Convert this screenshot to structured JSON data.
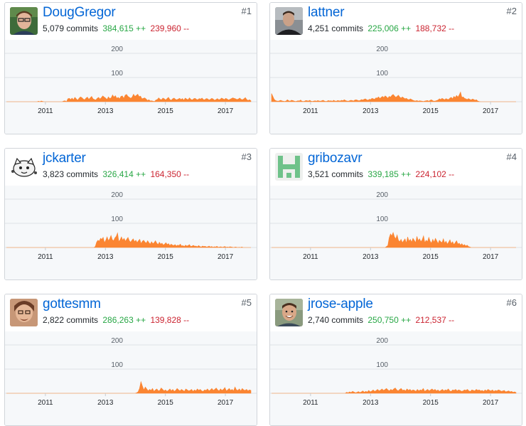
{
  "colors": {
    "area": "#fb8532",
    "link": "#0366d6",
    "additions": "#28a745",
    "deletions": "#cb2431",
    "grid": "#dfe2e5",
    "chart_bg": "#f6f8fa"
  },
  "contributors": [
    {
      "rank": "#1",
      "login": "DougGregor",
      "commits": "5,079 commits",
      "additions": "384,615 ++",
      "deletions": "239,960 --",
      "avatar": "portrait-glasses"
    },
    {
      "rank": "#2",
      "login": "lattner",
      "commits": "4,251 commits",
      "additions": "225,006 ++",
      "deletions": "188,732 --",
      "avatar": "portrait-dark"
    },
    {
      "rank": "#3",
      "login": "jckarter",
      "commits": "3,823 commits",
      "additions": "326,414 ++",
      "deletions": "164,350 --",
      "avatar": "cartoon-cat"
    },
    {
      "rank": "#4",
      "login": "gribozavr",
      "commits": "3,521 commits",
      "additions": "339,185 ++",
      "deletions": "224,102 --",
      "avatar": "identicon-green"
    },
    {
      "rank": "#5",
      "login": "gottesmm",
      "commits": "2,822 commits",
      "additions": "286,263 ++",
      "deletions": "139,828 --",
      "avatar": "portrait-warm"
    },
    {
      "rank": "#6",
      "login": "jrose-apple",
      "commits": "2,740 commits",
      "additions": "250,750 ++",
      "deletions": "212,537 --",
      "avatar": "portrait-smile"
    }
  ],
  "chart_data": [
    {
      "type": "area",
      "series": [
        {
          "values": [
            0,
            0,
            0,
            0,
            0,
            0,
            0,
            0,
            0,
            0,
            0,
            0,
            0,
            0,
            0,
            0,
            0,
            0,
            0,
            0,
            0,
            0,
            0,
            2,
            0,
            3,
            1,
            0,
            0,
            0,
            0,
            0,
            0,
            0,
            0,
            0,
            0,
            0,
            0,
            0,
            0,
            3,
            4,
            0,
            12,
            14,
            9,
            15,
            8,
            18,
            12,
            6,
            14,
            20,
            17,
            11,
            8,
            15,
            19,
            10,
            16,
            22,
            12,
            9,
            7,
            14,
            18,
            11,
            17,
            24,
            19,
            15,
            9,
            20,
            13,
            16,
            28,
            19,
            25,
            14,
            18,
            12,
            22,
            24,
            14,
            27,
            30,
            22,
            18,
            14,
            19,
            31,
            22,
            26,
            31,
            21,
            23,
            12,
            14,
            16,
            11,
            5,
            8,
            3,
            4,
            2,
            1,
            7,
            9,
            16,
            10,
            8,
            15,
            12,
            7,
            13,
            18,
            9,
            6,
            12,
            15,
            10,
            8,
            11,
            14,
            9,
            13,
            6,
            15,
            11,
            8,
            16,
            10,
            7,
            12,
            14,
            10,
            8,
            13,
            11,
            15,
            9,
            8,
            13,
            12,
            7,
            10,
            14,
            11,
            6,
            9,
            13,
            8,
            10,
            15,
            12,
            9,
            14,
            11,
            7,
            10,
            13,
            16,
            14,
            12,
            9,
            11,
            15,
            10,
            8,
            12,
            17,
            9,
            5,
            8,
            4
          ]
        }
      ],
      "x_ticks": [
        "2011",
        "2013",
        "2015",
        "2017"
      ],
      "y_ticks": [
        "100",
        "200"
      ],
      "x_range": [
        2009.7,
        2017.85
      ],
      "y_max": 250
    },
    {
      "type": "area",
      "series": [
        {
          "values": [
            34,
            22,
            10,
            5,
            3,
            2,
            4,
            6,
            3,
            2,
            1,
            3,
            8,
            4,
            2,
            6,
            5,
            3,
            1,
            2,
            4,
            3,
            7,
            2,
            1,
            2,
            5,
            4,
            3,
            6,
            2,
            1,
            3,
            4,
            2,
            5,
            3,
            2,
            4,
            6,
            3,
            1,
            2,
            5,
            3,
            4,
            2,
            6,
            3,
            2,
            5,
            4,
            3,
            6,
            4,
            8,
            5,
            3,
            2,
            4,
            6,
            5,
            3,
            7,
            8,
            6,
            4,
            5,
            9,
            7,
            10,
            12,
            8,
            6,
            10,
            9,
            14,
            12,
            10,
            16,
            15,
            20,
            13,
            18,
            22,
            17,
            24,
            20,
            14,
            22,
            19,
            26,
            30,
            24,
            18,
            22,
            27,
            19,
            15,
            20,
            16,
            12,
            14,
            10,
            8,
            12,
            9,
            6,
            4,
            3,
            5,
            2,
            4,
            3,
            2,
            1,
            3,
            4,
            5,
            2,
            6,
            8,
            4,
            2,
            3,
            5,
            7,
            12,
            9,
            14,
            11,
            8,
            13,
            10,
            9,
            15,
            18,
            12,
            22,
            17,
            26,
            19,
            28,
            40,
            18,
            20,
            14,
            12,
            9,
            13,
            10,
            7,
            11,
            9,
            6,
            8,
            3,
            1,
            0,
            0,
            0,
            0,
            0,
            0,
            0,
            0,
            0,
            0,
            0,
            0,
            0,
            0,
            0,
            0,
            0,
            0,
            0,
            0,
            0,
            0,
            0,
            0,
            0,
            0,
            0,
            0
          ]
        }
      ],
      "x_ticks": [
        "2011",
        "2013",
        "2015",
        "2017"
      ],
      "y_ticks": [
        "100",
        "200"
      ],
      "x_range": [
        2009.7,
        2017.85
      ],
      "y_max": 250
    },
    {
      "type": "area",
      "series": [
        {
          "values": [
            0,
            0,
            0,
            0,
            0,
            0,
            0,
            0,
            0,
            0,
            0,
            0,
            0,
            0,
            0,
            0,
            0,
            0,
            0,
            0,
            0,
            0,
            0,
            0,
            0,
            0,
            0,
            0,
            0,
            0,
            0,
            0,
            0,
            0,
            0,
            0,
            0,
            0,
            0,
            0,
            0,
            0,
            0,
            0,
            0,
            0,
            0,
            0,
            0,
            0,
            0,
            0,
            0,
            0,
            0,
            0,
            0,
            0,
            0,
            0,
            0,
            0,
            0,
            0,
            0,
            0,
            0,
            0,
            4,
            22,
            30,
            26,
            38,
            34,
            42,
            20,
            30,
            44,
            28,
            36,
            50,
            32,
            28,
            40,
            46,
            60,
            24,
            32,
            44,
            30,
            38,
            26,
            34,
            42,
            28,
            22,
            30,
            36,
            24,
            30,
            20,
            28,
            34,
            16,
            26,
            30,
            22,
            18,
            28,
            20,
            14,
            24,
            16,
            20,
            28,
            18,
            12,
            22,
            14,
            18,
            10,
            14,
            20,
            12,
            16,
            8,
            14,
            10,
            8,
            12,
            6,
            10,
            8,
            14,
            6,
            8,
            4,
            10,
            6,
            8,
            12,
            4,
            6,
            9,
            5,
            6,
            3,
            8,
            4,
            2,
            6,
            4,
            5,
            2,
            3,
            6,
            2,
            4,
            1,
            3,
            2,
            5,
            1,
            2,
            3,
            1,
            2,
            4,
            1,
            2,
            1,
            3,
            2,
            1,
            0,
            2,
            1,
            0,
            1,
            0,
            2,
            0,
            0,
            0,
            0,
            0,
            0,
            0
          ]
        }
      ],
      "x_ticks": [
        "2011",
        "2013",
        "2015",
        "2017"
      ],
      "y_ticks": [
        "100",
        "200"
      ],
      "x_range": [
        2009.7,
        2017.85
      ],
      "y_max": 250
    },
    {
      "type": "area",
      "series": [
        {
          "values": [
            0,
            0,
            0,
            0,
            0,
            0,
            0,
            0,
            0,
            0,
            0,
            0,
            0,
            0,
            0,
            0,
            0,
            0,
            0,
            0,
            0,
            0,
            0,
            0,
            0,
            0,
            0,
            0,
            0,
            0,
            0,
            0,
            0,
            0,
            0,
            0,
            0,
            0,
            0,
            0,
            0,
            0,
            0,
            0,
            0,
            0,
            0,
            0,
            0,
            0,
            0,
            0,
            0,
            0,
            0,
            0,
            0,
            0,
            0,
            0,
            0,
            0,
            0,
            0,
            0,
            0,
            0,
            0,
            0,
            0,
            0,
            0,
            0,
            0,
            0,
            0,
            0,
            0,
            0,
            0,
            0,
            0,
            0,
            0,
            0,
            0,
            0,
            4,
            8,
            40,
            56,
            48,
            62,
            44,
            36,
            52,
            30,
            24,
            34,
            20,
            28,
            36,
            18,
            44,
            26,
            34,
            22,
            38,
            30,
            20,
            46,
            28,
            36,
            24,
            32,
            48,
            20,
            30,
            24,
            42,
            26,
            18,
            34,
            22,
            38,
            28,
            16,
            30,
            24,
            20,
            36,
            18,
            26,
            14,
            22,
            32,
            16,
            24,
            12,
            20,
            28,
            14,
            18,
            10,
            16,
            8,
            12,
            6,
            10,
            4,
            2,
            0,
            0,
            0,
            0,
            0,
            0,
            0,
            0,
            0,
            0,
            0,
            0,
            0,
            0,
            0,
            0,
            0,
            0,
            0,
            0,
            0,
            0,
            0,
            0,
            0,
            0,
            0,
            0,
            0,
            0,
            0,
            0,
            0,
            0,
            0
          ]
        }
      ],
      "x_ticks": [
        "2011",
        "2013",
        "2015",
        "2017"
      ],
      "y_ticks": [
        "100",
        "200"
      ],
      "x_range": [
        2009.7,
        2017.85
      ],
      "y_max": 250
    },
    {
      "type": "area",
      "series": [
        {
          "values": [
            0,
            0,
            0,
            0,
            0,
            0,
            0,
            0,
            0,
            0,
            0,
            0,
            0,
            0,
            0,
            0,
            0,
            0,
            0,
            0,
            0,
            0,
            0,
            0,
            0,
            0,
            0,
            0,
            0,
            0,
            0,
            0,
            0,
            0,
            0,
            0,
            0,
            0,
            0,
            0,
            0,
            0,
            0,
            0,
            0,
            0,
            0,
            0,
            0,
            0,
            0,
            0,
            0,
            0,
            0,
            0,
            0,
            0,
            0,
            0,
            0,
            0,
            0,
            0,
            0,
            0,
            0,
            0,
            0,
            0,
            0,
            0,
            0,
            0,
            0,
            0,
            0,
            0,
            0,
            0,
            0,
            0,
            0,
            0,
            0,
            0,
            0,
            0,
            0,
            0,
            2,
            6,
            20,
            48,
            30,
            14,
            26,
            18,
            10,
            16,
            12,
            20,
            8,
            14,
            18,
            10,
            12,
            22,
            16,
            10,
            14,
            8,
            12,
            18,
            10,
            16,
            8,
            12,
            20,
            14,
            10,
            16,
            12,
            8,
            18,
            14,
            10,
            12,
            16,
            8,
            14,
            10,
            18,
            12,
            16,
            10,
            8,
            14,
            12,
            18,
            10,
            14,
            20,
            12,
            16,
            22,
            14,
            10,
            18,
            12,
            16,
            24,
            10,
            14,
            20,
            12,
            16,
            10,
            26,
            14,
            12,
            18,
            10,
            20,
            14,
            12,
            16,
            10,
            14,
            12
          ]
        }
      ],
      "x_ticks": [
        "2011",
        "2013",
        "2015",
        "2017"
      ],
      "y_ticks": [
        "100",
        "200"
      ],
      "x_range": [
        2009.7,
        2017.85
      ],
      "y_max": 250
    },
    {
      "type": "area",
      "series": [
        {
          "values": [
            0,
            0,
            0,
            0,
            0,
            0,
            0,
            0,
            0,
            0,
            0,
            0,
            0,
            0,
            0,
            0,
            0,
            0,
            0,
            0,
            0,
            0,
            0,
            0,
            0,
            0,
            0,
            0,
            0,
            0,
            0,
            0,
            0,
            0,
            0,
            0,
            0,
            0,
            0,
            0,
            0,
            0,
            0,
            0,
            0,
            0,
            0,
            0,
            0,
            0,
            0,
            4,
            2,
            6,
            3,
            8,
            5,
            2,
            4,
            7,
            3,
            6,
            10,
            4,
            8,
            5,
            12,
            6,
            9,
            14,
            8,
            11,
            16,
            10,
            13,
            18,
            12,
            15,
            20,
            14,
            10,
            16,
            12,
            18,
            22,
            14,
            10,
            16,
            20,
            12,
            14,
            10,
            18,
            12,
            16,
            10,
            14,
            12,
            8,
            16,
            10,
            14,
            12,
            20,
            8,
            12,
            16,
            10,
            14,
            18,
            12,
            16,
            10,
            14,
            8,
            12,
            16,
            10,
            14,
            12,
            18,
            10,
            8,
            14,
            12,
            16,
            10,
            14,
            12,
            8,
            10,
            14,
            12,
            16,
            10,
            8,
            14,
            12,
            10,
            16,
            12,
            14,
            10,
            12,
            8,
            14,
            10,
            16,
            12,
            10,
            14,
            8,
            12,
            10,
            14,
            12,
            8,
            10,
            12,
            6,
            8,
            10,
            6,
            8,
            4,
            6,
            3
          ]
        }
      ],
      "x_ticks": [
        "2011",
        "2013",
        "2015",
        "2017"
      ],
      "y_ticks": [
        "100",
        "200"
      ],
      "x_range": [
        2009.7,
        2017.85
      ],
      "y_max": 250
    }
  ]
}
